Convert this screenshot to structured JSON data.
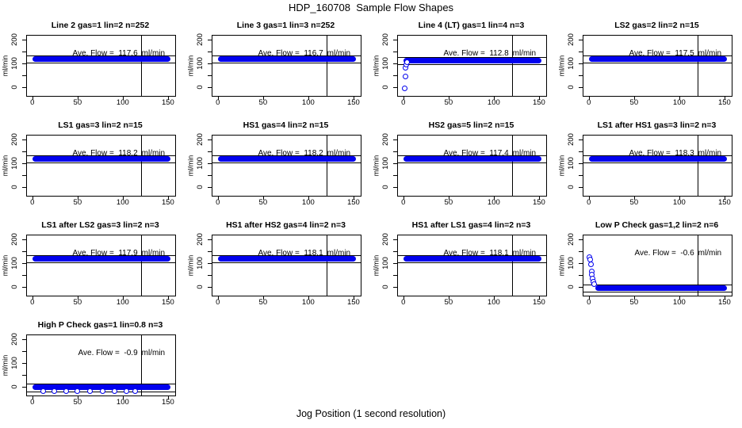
{
  "page_title": "HDP_160708  Sample Flow Shapes",
  "x_axis_label": "Jog Position (1 second resolution)",
  "labels": {
    "ave_label": "Ave. Flow =",
    "unit": "ml/min",
    "y_axis": "ml/min"
  },
  "colors": {
    "point_blue": "#0101ee",
    "axis_black": "#000000",
    "background": "#ffffff"
  },
  "chart_data": {
    "type": "scatter",
    "title": "HDP_160708  Sample Flow Shapes",
    "xlabel": "Jog Position (1 second resolution)",
    "ylabel": "ml/min",
    "layout": "4 columns x 4 rows, 13 panels, shared axes styling",
    "xlim": [
      -6,
      158
    ],
    "ylim": [
      -35,
      215
    ],
    "xticks": [
      0,
      50,
      100,
      150
    ],
    "yticks": [
      0,
      50,
      100,
      150,
      200
    ],
    "yticks_labeled": [
      0,
      100,
      200
    ],
    "marker_line_x": 120,
    "ref_line_offset": 15,
    "legend": "none",
    "panels": [
      {
        "title": "Line 2 gas=1 lin=2 n=252",
        "avg_flow": "117.6",
        "flat_level": 117.6,
        "band": [
          0,
          153
        ],
        "anomaly_points": []
      },
      {
        "title": "Line 3 gas=1 lin=3 n=252",
        "avg_flow": "116.7",
        "flat_level": 116.7,
        "band": [
          0,
          153
        ],
        "anomaly_points": []
      },
      {
        "title": "Line 4 (LT) gas=1 lin=4 n=3",
        "avg_flow": "112.8",
        "flat_level": 112.8,
        "band": [
          0,
          153
        ],
        "anomaly_points": [
          [
            1.5,
            -3
          ],
          [
            2,
            45
          ],
          [
            2.5,
            83
          ],
          [
            3,
            95
          ],
          [
            4.5,
            104
          ]
        ]
      },
      {
        "title": "LS2 gas=2 lin=2 n=15",
        "avg_flow": "117.5",
        "flat_level": 117.5,
        "band": [
          0,
          153
        ],
        "anomaly_points": []
      },
      {
        "title": "LS1 gas=3 lin=2 n=15",
        "avg_flow": "118.2",
        "flat_level": 118.2,
        "band": [
          0,
          153
        ],
        "anomaly_points": []
      },
      {
        "title": "HS1 gas=4 lin=2 n=15",
        "avg_flow": "118.2",
        "flat_level": 118.2,
        "band": [
          0,
          153
        ],
        "anomaly_points": []
      },
      {
        "title": "HS2 gas=5 lin=2 n=15",
        "avg_flow": "117.4",
        "flat_level": 117.4,
        "band": [
          0,
          153
        ],
        "anomaly_points": []
      },
      {
        "title": "LS1 after HS1 gas=3 lin=2 n=3",
        "avg_flow": "118.3",
        "flat_level": 118.3,
        "band": [
          0,
          153
        ],
        "anomaly_points": []
      },
      {
        "title": "LS1 after LS2 gas=3 lin=2 n=3",
        "avg_flow": "117.9",
        "flat_level": 117.9,
        "band": [
          0,
          153
        ],
        "anomaly_points": []
      },
      {
        "title": "HS1 after HS2 gas=4 lin=2 n=3",
        "avg_flow": "118.1",
        "flat_level": 118.1,
        "band": [
          0,
          153
        ],
        "anomaly_points": []
      },
      {
        "title": "HS1 after LS1 gas=4 lin=2 n=3",
        "avg_flow": "118.1",
        "flat_level": 118.1,
        "band": [
          0,
          153
        ],
        "anomaly_points": []
      },
      {
        "title": "Low P Check gas=1,2 lin=2 n=6",
        "avg_flow": "-0.6",
        "flat_level": -3,
        "band": [
          7,
          153
        ],
        "anomaly_points": [
          [
            1,
            125
          ],
          [
            1.5,
            114
          ],
          [
            2,
            95
          ],
          [
            3,
            64
          ],
          [
            3.5,
            52
          ],
          [
            4,
            35
          ],
          [
            5,
            24
          ],
          [
            6,
            13
          ]
        ]
      },
      {
        "title": "High P Check gas=1 lin=0.8 n=3",
        "avg_flow": "-0.9",
        "flat_level": -2,
        "band": [
          0,
          153
        ],
        "anomaly_points": [
          [
            12,
            -16
          ],
          [
            24,
            -16
          ],
          [
            37,
            -16
          ],
          [
            50,
            -16
          ],
          [
            64,
            -16
          ],
          [
            78,
            -16
          ],
          [
            91,
            -16
          ],
          [
            104,
            -16
          ],
          [
            114,
            -16
          ]
        ]
      }
    ]
  }
}
